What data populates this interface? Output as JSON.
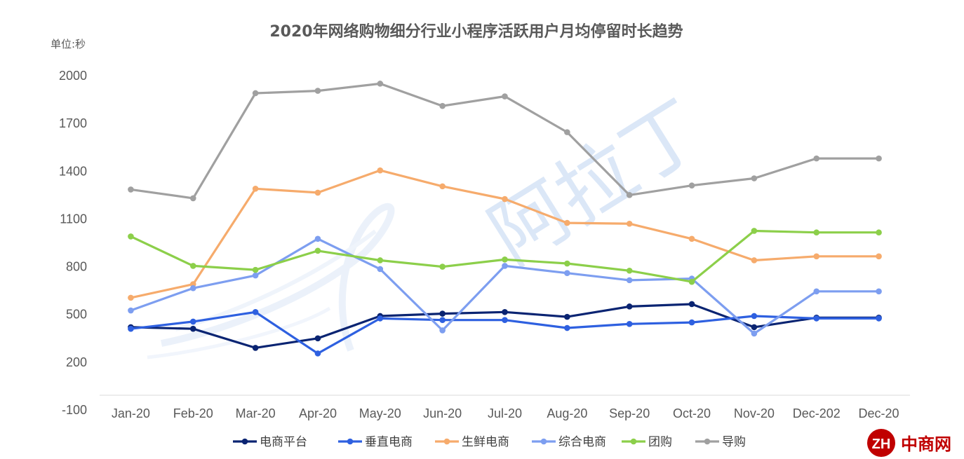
{
  "chart_data": {
    "type": "line",
    "title": "2020年网络购物细分行业小程序活跃用户月均停留时长趋势",
    "unit_label": "单位:秒",
    "categories": [
      "Jan-20",
      "Feb-20",
      "Mar-20",
      "Apr-20",
      "May-20",
      "Jun-20",
      "Jul-20",
      "Aug-20",
      "Sep-20",
      "Oct-20",
      "Nov-20",
      "Dec-202",
      "Dec-20"
    ],
    "ylim": [
      -100,
      2000
    ],
    "yticks": [
      "2000",
      "1700",
      "1400",
      "1100",
      "800",
      "500",
      "200",
      "-100"
    ],
    "ytick_values": [
      2000,
      1700,
      1400,
      1100,
      800,
      500,
      200,
      -100
    ],
    "grid": false,
    "legend_position": "bottom",
    "series": [
      {
        "name": "电商平台",
        "color": "#0a2472",
        "values": [
          420,
          410,
          290,
          350,
          490,
          505,
          515,
          485,
          550,
          565,
          420,
          480,
          480
        ]
      },
      {
        "name": "垂直电商",
        "color": "#2e60e0",
        "values": [
          410,
          455,
          515,
          255,
          475,
          465,
          465,
          415,
          440,
          450,
          490,
          475,
          475
        ]
      },
      {
        "name": "生鲜电商",
        "color": "#f6ab6c",
        "values": [
          605,
          690,
          1290,
          1265,
          1405,
          1305,
          1225,
          1075,
          1070,
          975,
          840,
          865,
          865
        ]
      },
      {
        "name": "综合电商",
        "color": "#7d9ef0",
        "values": [
          525,
          665,
          745,
          975,
          785,
          400,
          805,
          760,
          715,
          725,
          380,
          645,
          645
        ]
      },
      {
        "name": "团购",
        "color": "#8ccf4a",
        "values": [
          990,
          805,
          780,
          900,
          840,
          800,
          845,
          820,
          775,
          705,
          1025,
          1015,
          1015
        ]
      },
      {
        "name": "导购",
        "color": "#a0a0a0",
        "values": [
          1285,
          1230,
          1890,
          1905,
          1950,
          1810,
          1870,
          1645,
          1250,
          1310,
          1355,
          1480,
          1480
        ]
      }
    ]
  },
  "watermark": {
    "text": "阿拉丁",
    "color": "#dbe7f7"
  },
  "brand_logo": {
    "text": "中商网",
    "color": "#c00000"
  }
}
